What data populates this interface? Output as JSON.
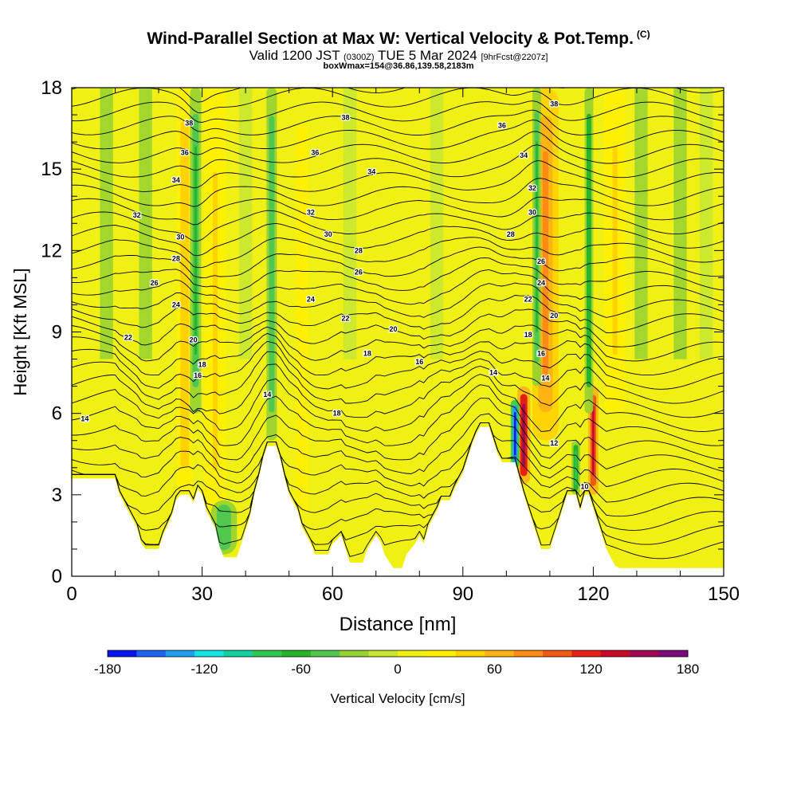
{
  "header": {
    "title": "Wind-Parallel Section at Max W: Vertical Velocity & Pot.Temp.",
    "title_units": "(C)",
    "valid_prefix": "Valid 1200 JST",
    "valid_utc": "(0300Z)",
    "valid_date": "TUE 5 Mar 2024",
    "forecast_note": "[9hrFcst@2207z]",
    "box_line": "boxWmax=154@36.86,139.58,2183m"
  },
  "chart_data": {
    "type": "heatmap",
    "xlabel": "Distance [nm]",
    "ylabel": "Height [Kft MSL]",
    "xlim": [
      0,
      150
    ],
    "ylim": [
      0,
      18
    ],
    "x_ticks": [
      0,
      30,
      60,
      90,
      120,
      150
    ],
    "y_ticks": [
      0,
      3,
      6,
      9,
      12,
      15,
      18
    ],
    "colorbar": {
      "label": "Vertical Velocity [cm/s]",
      "min": -180,
      "max": 180,
      "ticks": [
        -180,
        -120,
        -60,
        0,
        60,
        120,
        180
      ],
      "colors": [
        "#0a14f0",
        "#1e64f0",
        "#1ea0f0",
        "#14e6e6",
        "#14d2a0",
        "#32c850",
        "#28b428",
        "#50c850",
        "#96d232",
        "#c8e632",
        "#f0f014",
        "#fff000",
        "#ffd200",
        "#ffb414",
        "#ff8c14",
        "#f05a14",
        "#e61e14",
        "#c80a28",
        "#a00a50",
        "#7d0a7d"
      ]
    },
    "terrain_top_kft": [
      [
        0,
        3.6
      ],
      [
        10,
        3.6
      ],
      [
        11,
        3.0
      ],
      [
        13,
        2.4
      ],
      [
        15,
        1.8
      ],
      [
        16,
        1.2
      ],
      [
        17,
        1.0
      ],
      [
        20,
        1.0
      ],
      [
        21,
        1.5
      ],
      [
        23,
        2.2
      ],
      [
        24,
        2.8
      ],
      [
        25,
        3.0
      ],
      [
        27,
        3.0
      ],
      [
        28,
        2.7
      ],
      [
        29,
        3.2
      ],
      [
        30,
        3.0
      ],
      [
        31,
        2.4
      ],
      [
        33,
        1.8
      ],
      [
        34,
        1.1
      ],
      [
        35,
        0.7
      ],
      [
        38,
        0.7
      ],
      [
        39,
        1.2
      ],
      [
        41,
        2.2
      ],
      [
        42,
        3.0
      ],
      [
        43,
        3.6
      ],
      [
        44,
        4.3
      ],
      [
        45,
        4.8
      ],
      [
        47,
        4.8
      ],
      [
        48,
        4.3
      ],
      [
        49,
        3.6
      ],
      [
        50,
        3.0
      ],
      [
        52,
        2.4
      ],
      [
        53,
        1.8
      ],
      [
        55,
        1.2
      ],
      [
        56,
        0.8
      ],
      [
        59,
        0.8
      ],
      [
        60,
        1.2
      ],
      [
        62,
        1.5
      ],
      [
        63,
        1.0
      ],
      [
        64,
        0.5
      ],
      [
        67,
        0.5
      ],
      [
        68,
        1.0
      ],
      [
        70,
        1.5
      ],
      [
        71,
        1.3
      ],
      [
        72,
        0.8
      ],
      [
        74,
        0.3
      ],
      [
        76,
        0.3
      ],
      [
        77,
        0.8
      ],
      [
        79,
        1.2
      ],
      [
        80,
        1.5
      ],
      [
        81,
        1.2
      ],
      [
        82,
        1.8
      ],
      [
        84,
        2.4
      ],
      [
        85,
        2.8
      ],
      [
        87,
        2.8
      ],
      [
        88,
        3.2
      ],
      [
        90,
        3.8
      ],
      [
        91,
        4.3
      ],
      [
        92,
        4.8
      ],
      [
        93,
        5.2
      ],
      [
        94,
        5.5
      ],
      [
        96,
        5.5
      ],
      [
        97,
        5.0
      ],
      [
        98,
        4.5
      ],
      [
        99,
        4.2
      ],
      [
        102,
        4.2
      ],
      [
        103,
        3.6
      ],
      [
        104,
        3.0
      ],
      [
        105,
        2.5
      ],
      [
        106,
        2.0
      ],
      [
        107,
        1.5
      ],
      [
        108,
        1.0
      ],
      [
        110,
        1.0
      ],
      [
        111,
        1.5
      ],
      [
        112,
        2.0
      ],
      [
        113,
        2.5
      ],
      [
        114,
        3.0
      ],
      [
        116,
        3.0
      ],
      [
        117,
        2.4
      ],
      [
        118,
        3.0
      ],
      [
        119,
        3.0
      ],
      [
        120,
        2.5
      ],
      [
        121,
        2.0
      ],
      [
        122,
        1.5
      ],
      [
        123,
        1.0
      ],
      [
        124,
        0.7
      ],
      [
        125,
        0.4
      ],
      [
        126,
        0.3
      ],
      [
        150,
        0.3
      ]
    ],
    "updraft_columns": [
      {
        "center_nm": 26,
        "half_width_nm": 1.8,
        "top_kft": 18,
        "base_kft": 2.8,
        "w_cm_s": 50
      },
      {
        "center_nm": 33,
        "half_width_nm": 2.5,
        "top_kft": 18,
        "base_kft": 0.8,
        "w_cm_s": 40
      },
      {
        "center_nm": 53,
        "half_width_nm": 2.5,
        "top_kft": 18,
        "base_kft": 1.0,
        "w_cm_s": 30
      },
      {
        "center_nm": 104,
        "half_width_nm": 1.5,
        "top_kft": 7,
        "base_kft": 3.4,
        "w_cm_s": 154
      },
      {
        "center_nm": 109,
        "half_width_nm": 3.0,
        "top_kft": 18,
        "base_kft": 5,
        "w_cm_s": 80
      },
      {
        "center_nm": 120,
        "half_width_nm": 1.2,
        "top_kft": 7,
        "base_kft": 3.0,
        "w_cm_s": 130
      },
      {
        "center_nm": 125,
        "half_width_nm": 2.5,
        "top_kft": 18,
        "base_kft": 6,
        "w_cm_s": 40
      }
    ],
    "downdraft_columns": [
      {
        "center_nm": 28.5,
        "half_width_nm": 1.3,
        "top_kft": 18,
        "base_kft": 6,
        "w_cm_s": -60
      },
      {
        "center_nm": 35,
        "half_width_nm": 3.0,
        "top_kft": 2.8,
        "base_kft": 0.8,
        "w_cm_s": -50
      },
      {
        "center_nm": 46,
        "half_width_nm": 1.2,
        "top_kft": 18,
        "base_kft": 5,
        "w_cm_s": -50
      },
      {
        "center_nm": 102,
        "half_width_nm": 1.0,
        "top_kft": 6.5,
        "base_kft": 4.0,
        "w_cm_s": -180
      },
      {
        "center_nm": 107,
        "half_width_nm": 1.0,
        "top_kft": 18,
        "base_kft": 7,
        "w_cm_s": -60
      },
      {
        "center_nm": 119,
        "half_width_nm": 1.0,
        "top_kft": 18,
        "base_kft": 6,
        "w_cm_s": -70
      },
      {
        "center_nm": 116,
        "half_width_nm": 1.0,
        "top_kft": 5,
        "base_kft": 3.0,
        "w_cm_s": -80
      }
    ],
    "isentrope_labels": [
      {
        "text": "14",
        "x_nm": 3,
        "y_kft": 5.8
      },
      {
        "text": "32",
        "x_nm": 15,
        "y_kft": 13.3
      },
      {
        "text": "22",
        "x_nm": 13,
        "y_kft": 8.8
      },
      {
        "text": "26",
        "x_nm": 19,
        "y_kft": 10.8
      },
      {
        "text": "24",
        "x_nm": 24,
        "y_kft": 10.0
      },
      {
        "text": "34",
        "x_nm": 24,
        "y_kft": 14.6
      },
      {
        "text": "36",
        "x_nm": 26,
        "y_kft": 15.6
      },
      {
        "text": "28",
        "x_nm": 24,
        "y_kft": 11.7
      },
      {
        "text": "30",
        "x_nm": 25,
        "y_kft": 12.5
      },
      {
        "text": "38",
        "x_nm": 27,
        "y_kft": 16.7
      },
      {
        "text": "20",
        "x_nm": 28,
        "y_kft": 8.7
      },
      {
        "text": "18",
        "x_nm": 30,
        "y_kft": 7.8
      },
      {
        "text": "16",
        "x_nm": 29,
        "y_kft": 7.4
      },
      {
        "text": "14",
        "x_nm": 45,
        "y_kft": 6.7
      },
      {
        "text": "32",
        "x_nm": 55,
        "y_kft": 13.4
      },
      {
        "text": "36",
        "x_nm": 56,
        "y_kft": 15.6
      },
      {
        "text": "24",
        "x_nm": 55,
        "y_kft": 10.2
      },
      {
        "text": "30",
        "x_nm": 59,
        "y_kft": 12.6
      },
      {
        "text": "38",
        "x_nm": 63,
        "y_kft": 16.9
      },
      {
        "text": "18",
        "x_nm": 61,
        "y_kft": 6.0
      },
      {
        "text": "22",
        "x_nm": 63,
        "y_kft": 9.5
      },
      {
        "text": "28",
        "x_nm": 66,
        "y_kft": 12.0
      },
      {
        "text": "26",
        "x_nm": 66,
        "y_kft": 11.2
      },
      {
        "text": "34",
        "x_nm": 69,
        "y_kft": 14.9
      },
      {
        "text": "18",
        "x_nm": 68,
        "y_kft": 8.2
      },
      {
        "text": "20",
        "x_nm": 74,
        "y_kft": 9.1
      },
      {
        "text": "16",
        "x_nm": 80,
        "y_kft": 7.9
      },
      {
        "text": "14",
        "x_nm": 97,
        "y_kft": 7.5
      },
      {
        "text": "36",
        "x_nm": 99,
        "y_kft": 16.6
      },
      {
        "text": "28",
        "x_nm": 101,
        "y_kft": 12.6
      },
      {
        "text": "34",
        "x_nm": 104,
        "y_kft": 15.5
      },
      {
        "text": "32",
        "x_nm": 106,
        "y_kft": 14.3
      },
      {
        "text": "30",
        "x_nm": 106,
        "y_kft": 13.4
      },
      {
        "text": "22",
        "x_nm": 105,
        "y_kft": 10.2
      },
      {
        "text": "18",
        "x_nm": 105,
        "y_kft": 8.9
      },
      {
        "text": "16",
        "x_nm": 108,
        "y_kft": 8.2
      },
      {
        "text": "14",
        "x_nm": 109,
        "y_kft": 7.3
      },
      {
        "text": "26",
        "x_nm": 108,
        "y_kft": 11.6
      },
      {
        "text": "24",
        "x_nm": 108,
        "y_kft": 10.8
      },
      {
        "text": "20",
        "x_nm": 111,
        "y_kft": 9.6
      },
      {
        "text": "38",
        "x_nm": 111,
        "y_kft": 17.4
      },
      {
        "text": "12",
        "x_nm": 111,
        "y_kft": 4.9
      },
      {
        "text": "10",
        "x_nm": 118,
        "y_kft": 3.3
      }
    ]
  }
}
